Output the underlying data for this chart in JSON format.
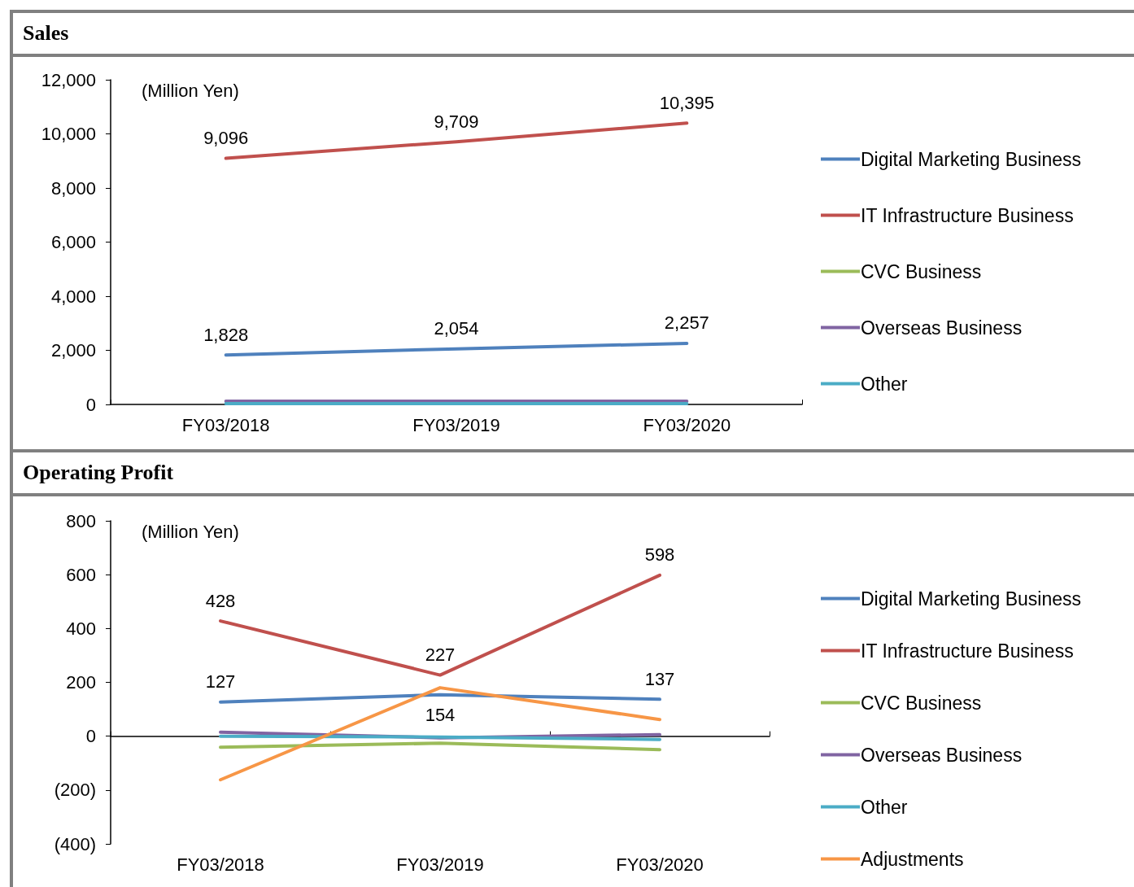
{
  "chart_data": [
    {
      "type": "line",
      "title": "Sales",
      "annotations": [
        "(Million Yen)"
      ],
      "categories": [
        "FY03/2018",
        "FY03/2019",
        "FY03/2020"
      ],
      "series": [
        {
          "name": "Digital Marketing Business",
          "color": "#4f81bd",
          "values": [
            1828,
            2054,
            2257
          ],
          "value_labels": [
            "1,828",
            "2,054",
            "2,257"
          ]
        },
        {
          "name": "IT Infrastructure Business",
          "color": "#c0504d",
          "values": [
            9096,
            9709,
            10395
          ],
          "value_labels": [
            "9,096",
            "9,709",
            "10,395"
          ]
        },
        {
          "name": "CVC Business",
          "color": "#9bbb59",
          "values": [
            null,
            null,
            null
          ]
        },
        {
          "name": "Overseas Business",
          "color": "#8064a2",
          "values": [
            120,
            120,
            120
          ]
        },
        {
          "name": "Other",
          "color": "#4bacc6",
          "values": [
            30,
            30,
            30
          ]
        }
      ],
      "ylim": [
        0,
        12000
      ],
      "yticks": [
        {
          "value": 0,
          "label": "0"
        },
        {
          "value": 2000,
          "label": "2,000"
        },
        {
          "value": 4000,
          "label": "4,000"
        },
        {
          "value": 6000,
          "label": "6,000"
        },
        {
          "value": 8000,
          "label": "8,000"
        },
        {
          "value": 10000,
          "label": "10,000"
        },
        {
          "value": 12000,
          "label": "12,000"
        }
      ],
      "legend": "right",
      "marker": "none",
      "line_style": "solid"
    },
    {
      "type": "line",
      "title": "Operating Profit",
      "annotations": [
        "(Million Yen)"
      ],
      "categories": [
        "FY03/2018",
        "FY03/2019",
        "FY03/2020"
      ],
      "series": [
        {
          "name": "Digital Marketing Business",
          "color": "#4f81bd",
          "values": [
            127,
            154,
            137
          ],
          "value_labels": [
            "127",
            "154",
            "137"
          ]
        },
        {
          "name": "IT Infrastructure Business",
          "color": "#c0504d",
          "values": [
            428,
            227,
            598
          ],
          "value_labels": [
            "428",
            "227",
            "598"
          ]
        },
        {
          "name": "CVC Business",
          "color": "#9bbb59",
          "values": [
            -41,
            -26,
            -50
          ]
        },
        {
          "name": "Overseas Business",
          "color": "#8064a2",
          "values": [
            15,
            -6,
            6
          ]
        },
        {
          "name": "Other",
          "color": "#4bacc6",
          "values": [
            0,
            -3,
            -12
          ]
        },
        {
          "name": "Adjustments",
          "color": "#f79646",
          "values": [
            -162,
            180,
            62
          ]
        }
      ],
      "ylim": [
        -400,
        800
      ],
      "yticks": [
        {
          "value": -400,
          "label": "(400)"
        },
        {
          "value": -200,
          "label": "(200)"
        },
        {
          "value": 0,
          "label": "0"
        },
        {
          "value": 200,
          "label": "200"
        },
        {
          "value": 400,
          "label": "400"
        },
        {
          "value": 600,
          "label": "600"
        },
        {
          "value": 800,
          "label": "800"
        }
      ],
      "legend": "right",
      "marker": "none",
      "line_style": "solid"
    }
  ]
}
